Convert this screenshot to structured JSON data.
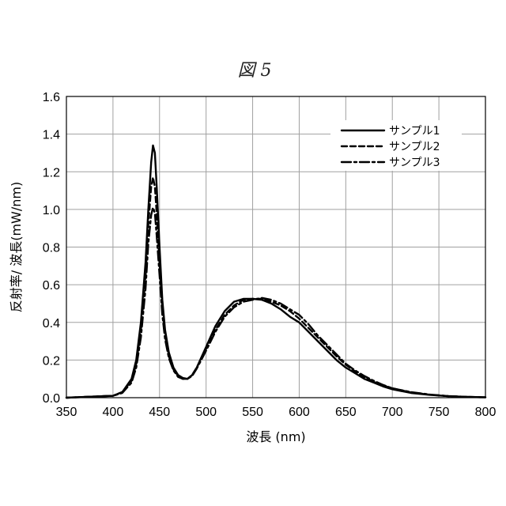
{
  "figure_title": "図 5",
  "chart_data": {
    "type": "line",
    "xlabel": "波長 (nm)",
    "ylabel": "反射率/ 波長(mW/nm)",
    "xlim": [
      350,
      800
    ],
    "ylim": [
      0,
      1.6
    ],
    "xticks": [
      "350",
      "400",
      "450",
      "500",
      "550",
      "600",
      "650",
      "700",
      "750",
      "800"
    ],
    "yticks": [
      "0.0",
      "0.2",
      "0.4",
      "0.6",
      "0.8",
      "1.0",
      "1.2",
      "1.4",
      "1.6"
    ],
    "grid": true,
    "legend_position": "top-right",
    "series": [
      {
        "name": "サンプル1",
        "dash": "solid",
        "x": [
          350,
          400,
          410,
          420,
          425,
          430,
          435,
          438,
          441,
          443,
          445,
          447,
          450,
          453,
          456,
          460,
          465,
          470,
          475,
          480,
          485,
          490,
          500,
          510,
          520,
          530,
          540,
          550,
          560,
          570,
          580,
          590,
          600,
          610,
          620,
          630,
          640,
          650,
          660,
          670,
          680,
          690,
          700,
          720,
          740,
          760,
          780,
          800
        ],
        "y": [
          0.0,
          0.01,
          0.03,
          0.1,
          0.2,
          0.4,
          0.72,
          1.0,
          1.25,
          1.34,
          1.3,
          1.12,
          0.8,
          0.52,
          0.36,
          0.24,
          0.16,
          0.12,
          0.105,
          0.1,
          0.12,
          0.16,
          0.27,
          0.38,
          0.46,
          0.51,
          0.525,
          0.525,
          0.52,
          0.5,
          0.47,
          0.43,
          0.4,
          0.35,
          0.3,
          0.25,
          0.2,
          0.16,
          0.13,
          0.1,
          0.08,
          0.06,
          0.045,
          0.025,
          0.015,
          0.008,
          0.004,
          0.002
        ]
      },
      {
        "name": "サンプル2",
        "dash": "dashed",
        "x": [
          350,
          400,
          410,
          420,
          425,
          430,
          435,
          438,
          441,
          443,
          445,
          447,
          450,
          453,
          456,
          460,
          465,
          470,
          475,
          480,
          485,
          490,
          500,
          510,
          520,
          530,
          540,
          550,
          560,
          570,
          580,
          590,
          600,
          610,
          620,
          630,
          640,
          650,
          660,
          670,
          680,
          690,
          700,
          720,
          740,
          760,
          780,
          800
        ],
        "y": [
          0.0,
          0.01,
          0.03,
          0.09,
          0.18,
          0.36,
          0.65,
          0.92,
          1.12,
          1.17,
          1.12,
          0.98,
          0.72,
          0.48,
          0.33,
          0.22,
          0.15,
          0.115,
          0.1,
          0.1,
          0.12,
          0.16,
          0.26,
          0.36,
          0.44,
          0.49,
          0.52,
          0.525,
          0.525,
          0.51,
          0.49,
          0.46,
          0.42,
          0.37,
          0.32,
          0.27,
          0.22,
          0.175,
          0.14,
          0.11,
          0.085,
          0.065,
          0.05,
          0.028,
          0.016,
          0.008,
          0.004,
          0.002
        ]
      },
      {
        "name": "サンプル3",
        "dash": "dashdot",
        "x": [
          350,
          400,
          410,
          420,
          425,
          430,
          435,
          438,
          441,
          443,
          445,
          447,
          450,
          453,
          456,
          460,
          465,
          470,
          475,
          480,
          485,
          490,
          500,
          510,
          520,
          530,
          540,
          550,
          560,
          570,
          580,
          590,
          600,
          610,
          620,
          630,
          640,
          650,
          660,
          670,
          680,
          690,
          700,
          720,
          740,
          760,
          780,
          800
        ],
        "y": [
          0.0,
          0.01,
          0.025,
          0.08,
          0.16,
          0.32,
          0.58,
          0.82,
          0.97,
          1.01,
          0.98,
          0.86,
          0.65,
          0.44,
          0.31,
          0.21,
          0.145,
          0.11,
          0.1,
          0.1,
          0.115,
          0.155,
          0.25,
          0.35,
          0.43,
          0.48,
          0.51,
          0.52,
          0.53,
          0.52,
          0.5,
          0.47,
          0.44,
          0.39,
          0.33,
          0.28,
          0.23,
          0.18,
          0.145,
          0.115,
          0.09,
          0.068,
          0.05,
          0.03,
          0.017,
          0.009,
          0.004,
          0.002
        ]
      }
    ]
  }
}
